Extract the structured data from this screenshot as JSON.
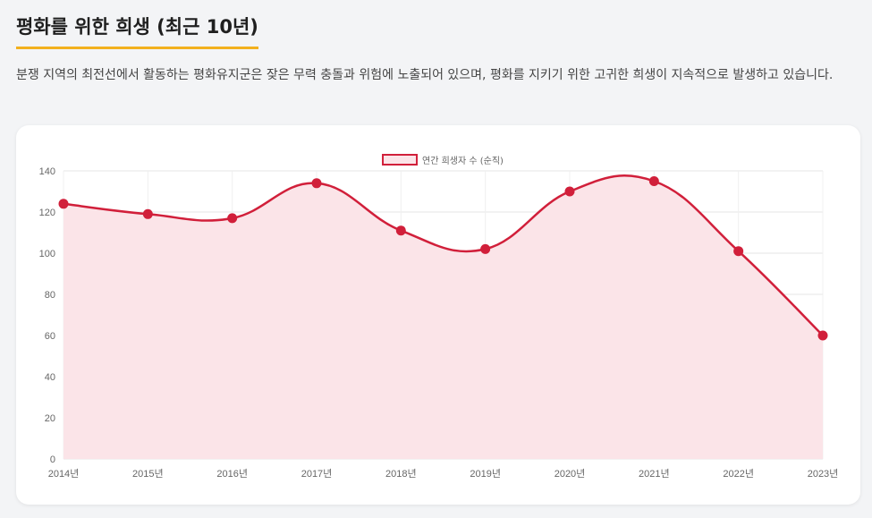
{
  "page": {
    "title": "평화를 위한 희생 (최근 10년)",
    "description": "분쟁 지역의 최전선에서 활동하는 평화유지군은 잦은 무력 충돌과 위험에 노출되어 있으며, 평화를 지키기 위한 고귀한 희생이 지속적으로 발생하고 있습니다."
  },
  "colors": {
    "accent_underline": "#f2b01e",
    "line": "#d11f3a",
    "fill": "#fbe4e8",
    "grid": "#e6e6e6"
  },
  "chart_data": {
    "type": "line",
    "categories": [
      "2014년",
      "2015년",
      "2016년",
      "2017년",
      "2018년",
      "2019년",
      "2020년",
      "2021년",
      "2022년",
      "2023년"
    ],
    "series": [
      {
        "name": "연간 희생자 수 (순직)",
        "values": [
          124,
          119,
          117,
          134,
          111,
          102,
          130,
          135,
          101,
          60
        ],
        "filled": true,
        "smooth": true
      }
    ],
    "ylim": [
      0,
      140
    ],
    "y_ticks": [
      0,
      20,
      40,
      60,
      80,
      100,
      120,
      140
    ],
    "legend_position": "top",
    "grid": true
  }
}
